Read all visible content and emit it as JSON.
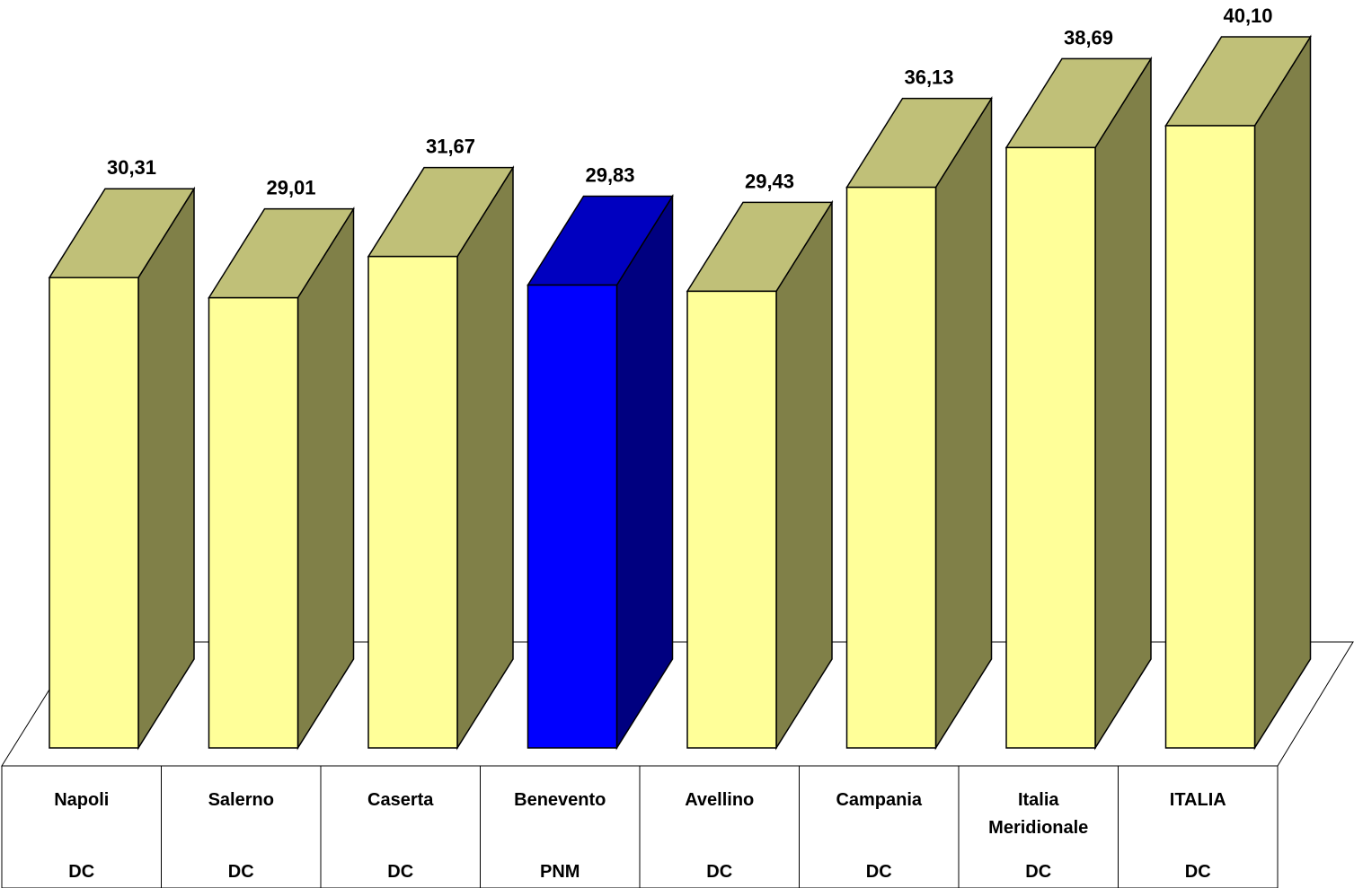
{
  "chart_data": {
    "type": "bar",
    "categories": [
      "Napoli",
      "Salerno",
      "Caserta",
      "Benevento",
      "Avellino",
      "Campania",
      "Italia Meridionale",
      "ITALIA"
    ],
    "category_lines": [
      [
        "Napoli"
      ],
      [
        "Salerno"
      ],
      [
        "Caserta"
      ],
      [
        "Benevento"
      ],
      [
        "Avellino"
      ],
      [
        "Campania"
      ],
      [
        "Italia",
        "Meridionale"
      ],
      [
        "ITALIA"
      ]
    ],
    "sublabels": [
      "DC",
      "DC",
      "DC",
      "PNM",
      "DC",
      "DC",
      "DC",
      "DC"
    ],
    "values": [
      30.31,
      29.01,
      31.67,
      29.83,
      29.43,
      36.13,
      38.69,
      40.1
    ],
    "value_labels": [
      "30,31",
      "29,01",
      "31,67",
      "29,83",
      "29,43",
      "36,13",
      "38,69",
      "40,10"
    ],
    "highlight_index": 3,
    "title": "",
    "xlabel": "",
    "ylabel": "",
    "ylim": [
      0,
      40.1
    ],
    "grid": false,
    "legend": "none",
    "style": "3d-column"
  },
  "colors": {
    "front": "#FFFF99",
    "top": "#C0C078",
    "side": "#808048",
    "highlight_front": "#0000FF",
    "highlight_top": "#0000C0",
    "highlight_side": "#000080",
    "outline": "#000000",
    "floor": "#FFFFFF"
  }
}
